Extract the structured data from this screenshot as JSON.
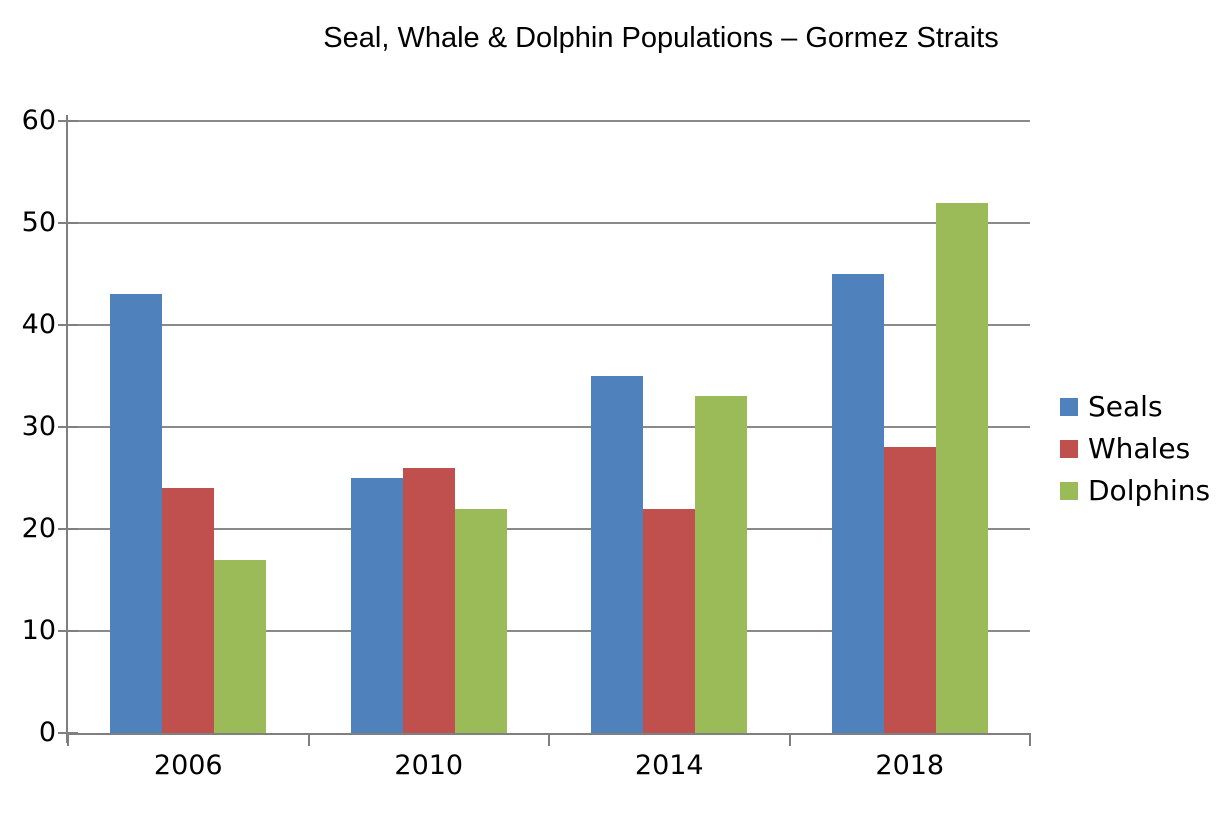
{
  "chart_data": {
    "type": "bar",
    "title": "Seal, Whale & Dolphin Populations – Gormez Straits",
    "categories": [
      "2006",
      "2010",
      "2014",
      "2018"
    ],
    "series": [
      {
        "name": "Seals",
        "color": "#4F81BD",
        "values": [
          43,
          25,
          35,
          45
        ]
      },
      {
        "name": "Whales",
        "color": "#C0504D",
        "values": [
          24,
          26,
          22,
          28
        ]
      },
      {
        "name": "Dolphins",
        "color": "#9BBB59",
        "values": [
          17,
          22,
          33,
          52
        ]
      }
    ],
    "xlabel": "",
    "ylabel": "",
    "ylim": [
      0,
      60
    ],
    "yticks": [
      0,
      10,
      20,
      30,
      40,
      50,
      60
    ],
    "grid": true,
    "legend_position": "right",
    "colors": {
      "grid": "#8A8A8A",
      "axis": "#7F7F7F",
      "text": "#000000",
      "background": "#FFFFFF"
    }
  }
}
